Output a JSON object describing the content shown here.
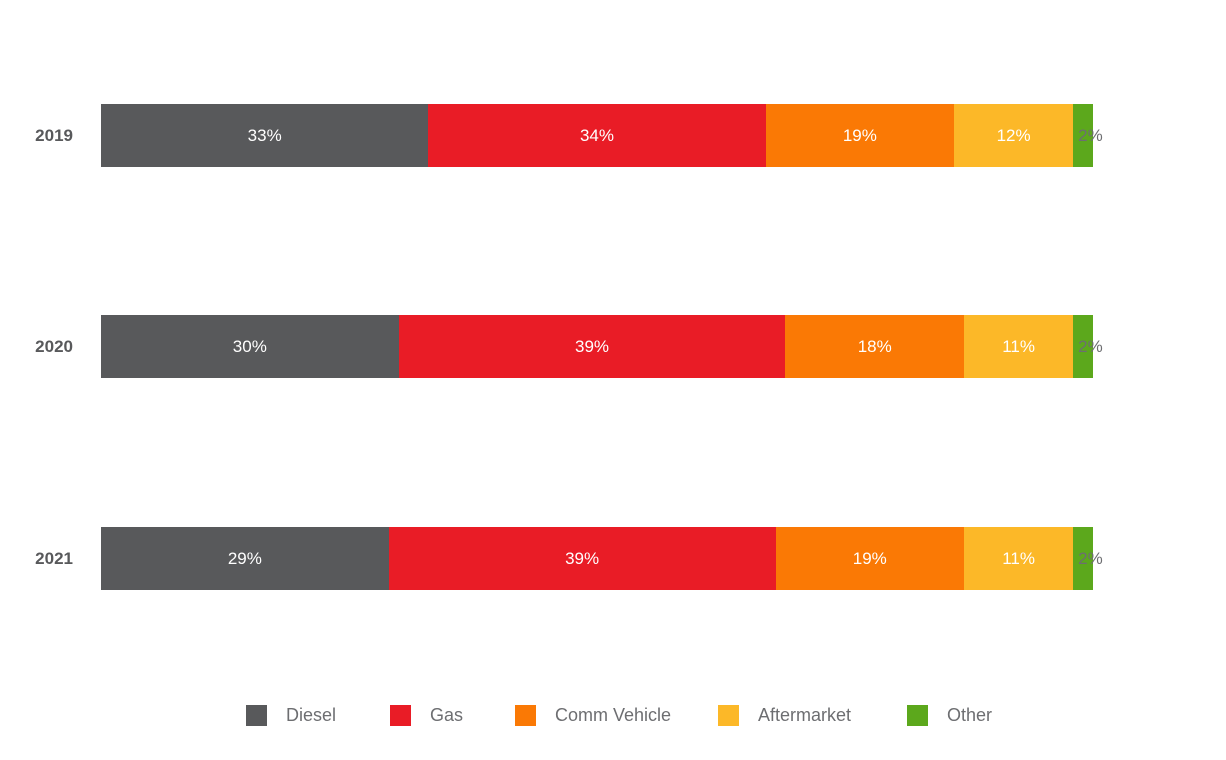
{
  "chart_data": {
    "type": "bar",
    "variant": "horizontal-stacked-100-percent",
    "categories": [
      "2019",
      "2020",
      "2021"
    ],
    "series": [
      {
        "name": "Diesel",
        "color": "#58595B",
        "values": [
          33,
          30,
          29
        ]
      },
      {
        "name": "Gas",
        "color": "#E91C26",
        "values": [
          34,
          39,
          39
        ]
      },
      {
        "name": "Comm Vehicle",
        "color": "#FA7905",
        "values": [
          19,
          18,
          19
        ]
      },
      {
        "name": "Aftermarket",
        "color": "#FCB828",
        "values": [
          12,
          11,
          11
        ]
      },
      {
        "name": "Other",
        "color": "#5CA81C",
        "values": [
          2,
          2,
          2
        ]
      }
    ],
    "data_labels": [
      [
        "33%",
        "34%",
        "19%",
        "12%",
        "2%"
      ],
      [
        "30%",
        "39%",
        "18%",
        "11%",
        "2%"
      ],
      [
        "29%",
        "39%",
        "19%",
        "11%",
        "2%"
      ]
    ],
    "title": "",
    "xlabel": "",
    "ylabel": "",
    "xlim": [
      0,
      100
    ],
    "grid": false,
    "legend_position": "bottom",
    "legend": [
      "Diesel",
      "Gas",
      "Comm Vehicle",
      "Aftermarket",
      "Other"
    ]
  },
  "styles": {
    "background": "#FFFFFF",
    "category_label_color": "#58595B",
    "inside_label_color": "#FFFFFF",
    "outside_label_color": "#6D6E71",
    "legend_text_color": "#6D6E71"
  }
}
